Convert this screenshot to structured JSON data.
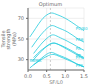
{
  "chart_data": {
    "type": "line",
    "xlabel": "SF/L0",
    "ylabel": "Tensile\nstrength\n(MPa)",
    "color": "#22ccdd",
    "xlim": [
      0,
      1.5
    ],
    "ylim": [
      20,
      80
    ],
    "xticks": [
      {
        "value": 0,
        "label": "0.0"
      },
      {
        "value": 0.5,
        "label": "0.5"
      },
      {
        "value": 1.0,
        "label": "1.0"
      },
      {
        "value": 1.5,
        "label": "1.5"
      }
    ],
    "yticks": [
      30,
      50,
      70
    ],
    "grid": true,
    "series": [
      {
        "x": [
          0.05,
          0.2,
          0.4,
          0.6,
          0.75,
          1.0,
          1.3,
          1.5
        ],
        "values": [
          52,
          60,
          70,
          75,
          74,
          70,
          63,
          58
        ]
      },
      {
        "x": [
          0.1,
          0.3,
          0.5,
          0.65,
          0.8,
          1.05,
          1.3,
          1.5
        ],
        "values": [
          42,
          52,
          60,
          63,
          61,
          57,
          51,
          47
        ]
      },
      {
        "x": [
          0.15,
          0.35,
          0.55,
          0.68,
          0.82,
          1.05,
          1.3,
          1.5
        ],
        "values": [
          36,
          45,
          52,
          54,
          52,
          48,
          43,
          39
        ]
      },
      {
        "x": [
          0.1,
          0.3,
          0.5,
          0.65,
          0.8,
          1.05,
          1.3,
          1.5
        ],
        "values": [
          28,
          36,
          43,
          46,
          45,
          41,
          36,
          32
        ]
      },
      {
        "x": [
          0.15,
          0.35,
          0.55,
          0.7,
          0.85,
          1.05,
          1.3,
          1.5
        ],
        "values": [
          32,
          39,
          44,
          46,
          44,
          40,
          35,
          31
        ]
      },
      {
        "x": [
          0.05,
          0.25,
          0.45,
          0.62,
          0.78,
          1.05,
          1.3,
          1.5
        ],
        "values": [
          22,
          28,
          34,
          37,
          35,
          31,
          26,
          23
        ]
      },
      {
        "x": [
          0.15,
          0.35,
          0.55,
          0.7,
          0.85,
          1.05,
          1.3,
          1.5
        ],
        "values": [
          25,
          30,
          34,
          35,
          33,
          30,
          26,
          23
        ]
      }
    ],
    "annotations": [
      {
        "text": "PC/80",
        "x": 1.28,
        "y": 60
      },
      {
        "text": "PA6",
        "x": 1.28,
        "y": 49
      },
      {
        "text": "PA",
        "x": 1.28,
        "y": 41
      },
      {
        "text": "PP",
        "x": 1.28,
        "y": 34
      },
      {
        "text": "PPS",
        "x": 1.28,
        "y": 32
      },
      {
        "text": "PBMA",
        "x": 0.05,
        "y": 29
      },
      {
        "text": "PPS",
        "x": 1.28,
        "y": 24
      },
      {
        "text": "Optimum",
        "x": 0.6,
        "line_style": "dashed"
      }
    ]
  }
}
